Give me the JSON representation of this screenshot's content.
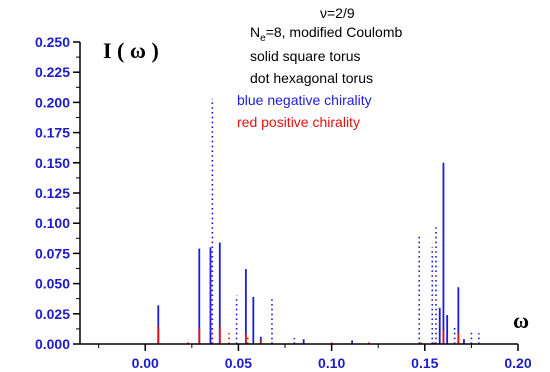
{
  "chart_data": {
    "type": "line",
    "title": "",
    "xlabel": "ω",
    "ylabel": "I ( ω )",
    "xlim": [
      -0.035,
      0.2
    ],
    "ylim": [
      0,
      0.25
    ],
    "x_ticks": [
      "0.00",
      "0.05",
      "0.10",
      "0.15",
      "0.20"
    ],
    "y_ticks": [
      "0.000",
      "0.025",
      "0.050",
      "0.075",
      "0.100",
      "0.125",
      "0.150",
      "0.175",
      "0.200",
      "0.225",
      "0.250"
    ],
    "annotations": [
      "ν=2/9",
      "N",
      "e",
      "=8, modified Coulomb",
      "solid square torus",
      "dot hexagonal torus",
      "blue negative chirality",
      "red positive chirality"
    ],
    "colors": {
      "blue": "#1c1cdc",
      "red": "#e81010",
      "axis": "#000000"
    },
    "series": [
      {
        "style": "solid",
        "color": "blue",
        "x": [
          0.007,
          0.029,
          0.035,
          0.04,
          0.054,
          0.058,
          0.062,
          0.085,
          0.111,
          0.16,
          0.162,
          0.168,
          0.158,
          0.171
        ],
        "values": [
          0.032,
          0.079,
          0.08,
          0.084,
          0.062,
          0.039,
          0.006,
          0.004,
          0.003,
          0.15,
          0.024,
          0.047,
          0.03,
          0.004
        ]
      },
      {
        "style": "dotted",
        "color": "blue",
        "x": [
          0.036,
          0.049,
          0.068,
          0.08,
          0.147,
          0.154,
          0.156,
          0.166,
          0.175,
          0.179
        ],
        "values": [
          0.203,
          0.04,
          0.038,
          0.005,
          0.09,
          0.08,
          0.098,
          0.016,
          0.011,
          0.009
        ]
      },
      {
        "style": "solid",
        "color": "red",
        "x": [
          0.007,
          0.029,
          0.04,
          0.054,
          0.062,
          0.16,
          0.168
        ],
        "values": [
          0.014,
          0.013,
          0.014,
          0.008,
          0.003,
          0.011,
          0.009
        ]
      },
      {
        "style": "dotted",
        "color": "red",
        "x": [
          0.023,
          0.036,
          0.045,
          0.055,
          0.1,
          0.12,
          0.148,
          0.155
        ],
        "values": [
          0.004,
          0.012,
          0.009,
          0.006,
          0.002,
          0.002,
          0.003,
          0.003
        ]
      }
    ]
  }
}
